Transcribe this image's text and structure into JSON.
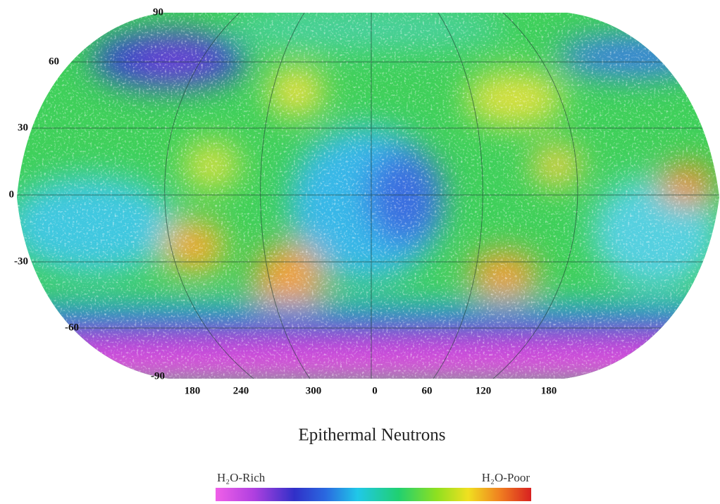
{
  "map": {
    "latitude_labels": [
      "90",
      "60",
      "30",
      "0",
      "-30",
      "-60",
      "-90"
    ],
    "longitude_labels": [
      "180",
      "240",
      "300",
      "0",
      "60",
      "120",
      "180"
    ],
    "title": "Epithermal Neutrons",
    "legend": {
      "low_label": "H₂O-Rich",
      "high_label": "H₂O-Poor"
    }
  }
}
